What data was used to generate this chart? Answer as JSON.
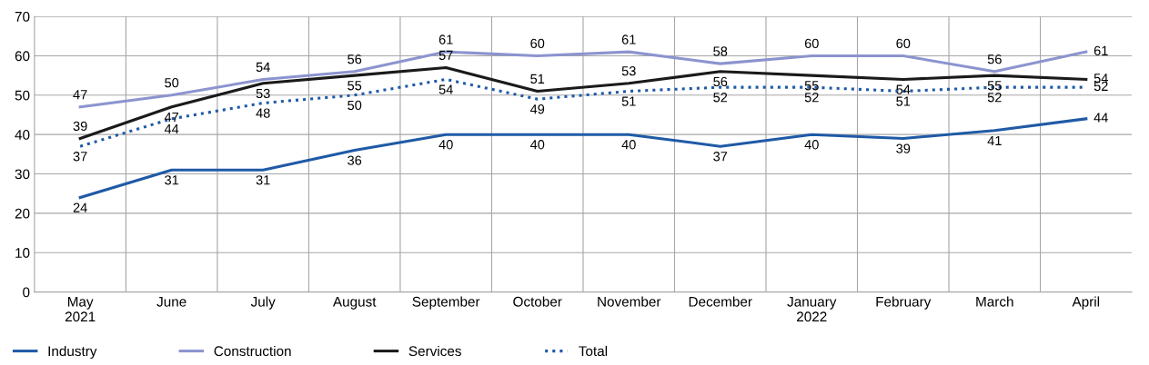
{
  "chart_data": {
    "type": "line",
    "categories": [
      "May\n2021",
      "June",
      "July",
      "August",
      "September",
      "October",
      "November",
      "December",
      "January\n2022",
      "February",
      "March",
      "April"
    ],
    "series": [
      {
        "name": "Industry",
        "color": "#1f5aa6",
        "line_style": "solid",
        "values": [
          24,
          31,
          31,
          36,
          40,
          40,
          40,
          37,
          40,
          39,
          41,
          44
        ]
      },
      {
        "name": "Construction",
        "color": "#8c94cf",
        "line_style": "solid",
        "values": [
          47,
          50,
          54,
          56,
          61,
          60,
          61,
          58,
          60,
          60,
          56,
          61
        ]
      },
      {
        "name": "Services",
        "color": "#1a1a1a",
        "line_style": "solid",
        "values": [
          39,
          47,
          53,
          55,
          57,
          51,
          53,
          56,
          55,
          54,
          55,
          54
        ]
      },
      {
        "name": "Total",
        "color": "#1f5aa6",
        "line_style": "dotted",
        "values": [
          37,
          44,
          48,
          50,
          54,
          49,
          51,
          52,
          52,
          51,
          52,
          52
        ]
      }
    ],
    "ylim": [
      0,
      70
    ],
    "yticks": [
      0,
      10,
      20,
      30,
      40,
      50,
      60,
      70
    ],
    "grid": true,
    "legend": "bottom left",
    "data_labels": true,
    "marker": "none"
  }
}
